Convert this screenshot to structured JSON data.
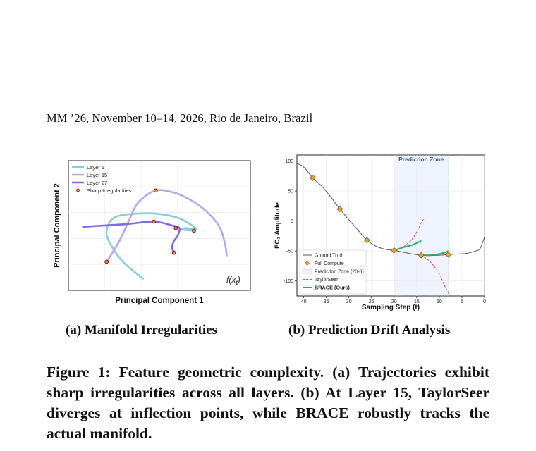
{
  "header": {
    "text": "MM ’26, November 10–14, 2026, Rio de Janeiro, Brazil"
  },
  "figure_a": {
    "subcaption": "(a) Manifold Irregularities",
    "annotation": "f(x",
    "annotation_sub": "t",
    "annotation_close": ")"
  },
  "figure_b": {
    "subcaption": "(b) Prediction Drift Analysis",
    "zone_label": "Prediction Zone"
  },
  "caption": {
    "text": "Figure 1: Feature geometric complexity. (a) Trajectories exhibit sharp irregularities across all layers. (b) At Layer 15, TaylorSeer diverges at inflection points, while BRACE robustly tracks the actual manifold."
  },
  "chart_data": [
    {
      "type": "line",
      "xlabel": "Principal Component 1",
      "ylabel": "Principal Component 2",
      "grid": true,
      "legend_placement": "top-left",
      "xlim": [
        0,
        10
      ],
      "ylim": [
        0,
        10
      ],
      "series": [
        {
          "name": "Layer 1",
          "color": "#87cedd",
          "x": [
            4.1,
            3.0,
            2.3,
            2.1,
            2.5,
            3.6,
            4.9,
            6.0,
            6.8,
            7.0,
            6.5,
            6.2,
            6.9
          ],
          "y": [
            0.9,
            2.2,
            3.6,
            4.6,
            5.6,
            5.9,
            5.9,
            5.6,
            5.0,
            4.7,
            4.8,
            4.7,
            4.6
          ]
        },
        {
          "name": "Layer 15",
          "color": "#b3a8ef",
          "x": [
            2.1,
            2.8,
            3.3,
            3.8,
            4.6,
            5.3,
            6.4,
            7.5,
            8.3,
            8.6,
            8.7
          ],
          "y": [
            2.2,
            3.8,
            5.3,
            6.7,
            7.6,
            7.7,
            7.2,
            6.2,
            4.9,
            3.6,
            2.7
          ]
        },
        {
          "name": "Layer 27",
          "color": "#7b6ae0",
          "x": [
            0.8,
            3.1,
            4.7,
            5.7,
            6.1,
            6.0,
            5.8,
            5.7,
            5.8
          ],
          "y": [
            4.9,
            5.1,
            5.3,
            5.0,
            4.8,
            4.2,
            3.8,
            3.3,
            2.9
          ]
        }
      ],
      "points": {
        "name": "Sharp Irregularities",
        "color": "#e8944a",
        "x": [
          2.1,
          4.8,
          6.9,
          5.9,
          4.7,
          5.8
        ],
        "y": [
          2.2,
          7.7,
          4.6,
          4.8,
          5.3,
          2.9
        ]
      }
    },
    {
      "type": "line",
      "xlabel": "Sampling Step (t)",
      "ylabel": "PC₁ Amplitude",
      "grid": true,
      "legend_placement": "bottom-left",
      "xlim": [
        41.5,
        0
      ],
      "ylim": [
        -125,
        110
      ],
      "xticks": [
        40,
        35,
        30,
        25,
        20,
        15,
        10,
        5,
        0
      ],
      "yticks": [
        100,
        50,
        0,
        -50,
        -100
      ],
      "prediction_zone": [
        20,
        8
      ],
      "series": [
        {
          "name": "Ground Truth",
          "color": "#555555",
          "x": [
            41.5,
            40,
            38,
            36,
            34,
            32,
            30,
            28,
            26,
            24,
            22,
            20,
            18,
            16,
            14,
            12,
            10,
            8,
            6,
            4,
            2,
            1,
            0
          ],
          "y": [
            96,
            90,
            72,
            58,
            40,
            20,
            2,
            -15,
            -32,
            -42,
            -47,
            -49,
            -52,
            -55,
            -57,
            -57.5,
            -57,
            -56,
            -55,
            -54,
            -50,
            -46,
            -27
          ]
        },
        {
          "name": "Full Compute",
          "color": "#e8a02a",
          "x": [
            38,
            32,
            26,
            20,
            14,
            8
          ],
          "y": [
            72,
            20,
            -32,
            -49,
            -57,
            -56
          ]
        },
        {
          "name": "Prediction Zone (20-8)",
          "color": "#eef3fd"
        },
        {
          "name": "TaylorSeer",
          "color": "#e04444",
          "branches": [
            {
              "x": [
                20,
                18,
                16,
                15,
                14,
                13.5
              ],
              "y": [
                -49,
                -43,
                -30,
                -18,
                -3,
                3
              ]
            },
            {
              "x": [
                14,
                12,
                10,
                9,
                8,
                7.5
              ],
              "y": [
                -57,
                -68,
                -88,
                -105,
                -120,
                -128
              ]
            }
          ]
        },
        {
          "name": "BRACE (Ours)",
          "color": "#2aaa6a",
          "branches": [
            {
              "x": [
                20,
                18,
                16,
                14
              ],
              "y": [
                -49,
                -44,
                -40,
                -33
              ]
            },
            {
              "x": [
                14,
                12,
                10,
                9,
                8
              ],
              "y": [
                -57,
                -57,
                -55,
                -53,
                -50
              ]
            }
          ]
        }
      ]
    }
  ]
}
